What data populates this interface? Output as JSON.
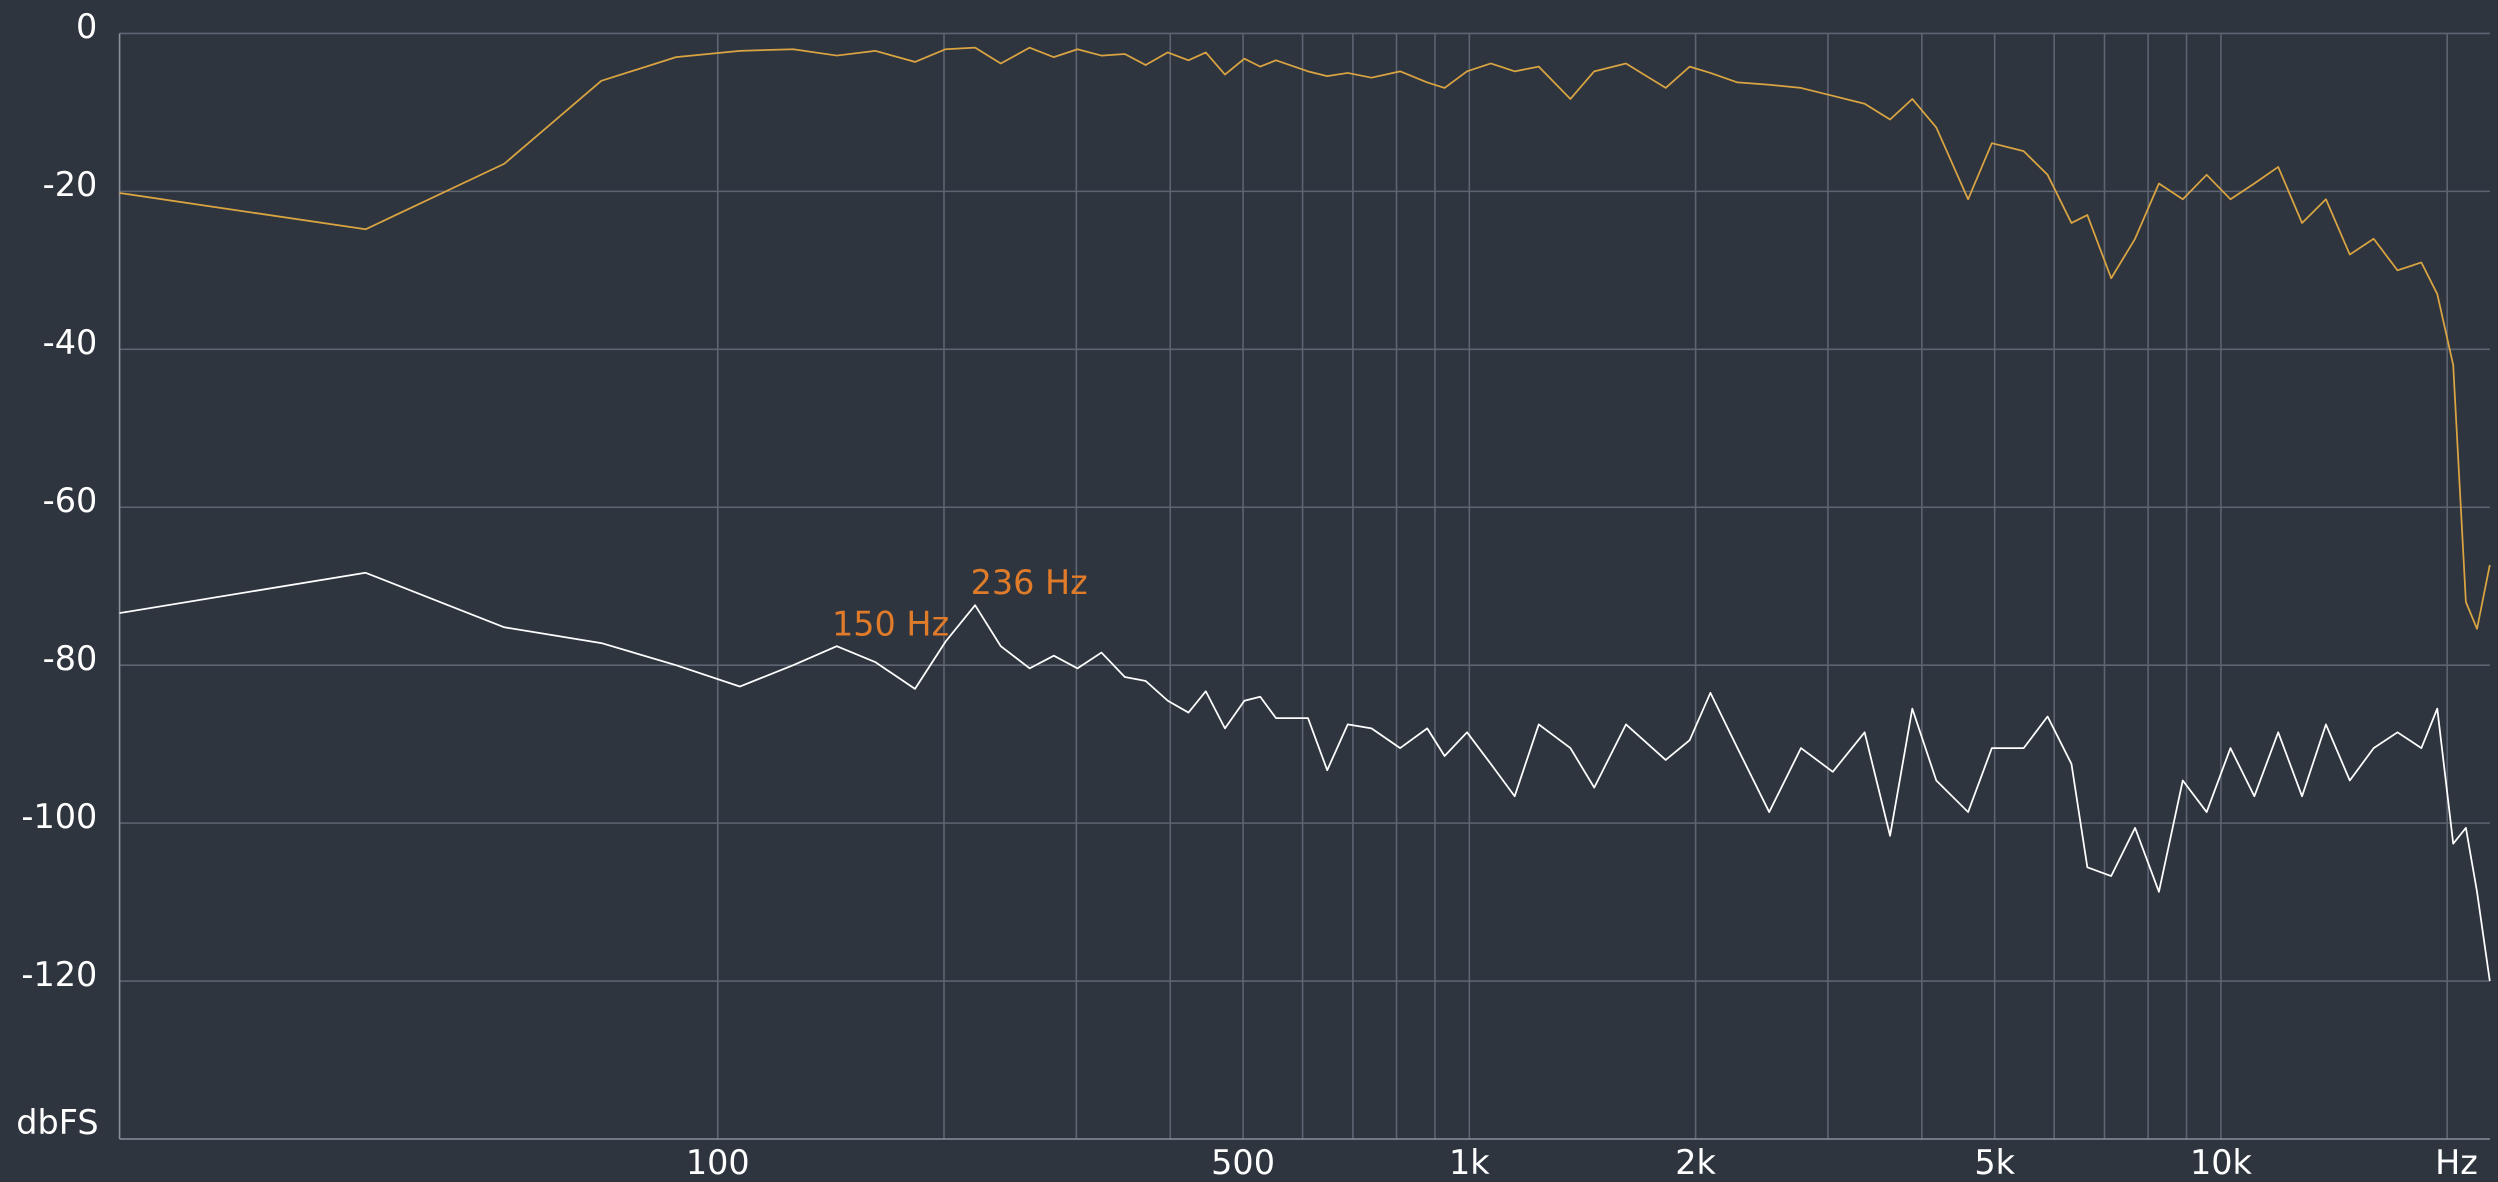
{
  "chart_data": {
    "type": "line",
    "y_label": "dbFS",
    "x_label": "Hz",
    "log_x": true,
    "grid": true,
    "xlim": [
      16,
      22800
    ],
    "ylim": [
      -140,
      0
    ],
    "yticks": [
      0,
      -20,
      -40,
      -60,
      -80,
      -100,
      -120
    ],
    "xticks": [
      100,
      500,
      {
        "value": 1000,
        "label": "1k"
      },
      {
        "value": 2000,
        "label": "2k"
      },
      {
        "value": 5000,
        "label": "5k"
      },
      {
        "value": 10000,
        "label": "10k"
      }
    ],
    "xgrid": [
      200,
      300,
      400,
      600,
      700,
      800,
      900,
      3000,
      4000,
      6000,
      7000,
      8000,
      9000,
      20000
    ],
    "x": [
      16,
      34,
      52,
      70,
      88,
      107,
      126,
      144,
      162,
      183,
      201,
      220,
      238,
      260,
      280,
      301,
      324,
      348,
      371,
      397,
      423,
      446,
      473,
      502,
      527,
      553,
      610,
      647,
      689,
      741,
      809,
      879,
      927,
      993,
      1068,
      1149,
      1237,
      1363,
      1466,
      1616,
      1825,
      1964,
      2093,
      2274,
      2506,
      2762,
      3045,
      3357,
      3629,
      3885,
      4181,
      4609,
      4957,
      5465,
      5880,
      6326,
      6642,
      7145,
      7687,
      8270,
      8897,
      9572,
      10297,
      11078,
      11919,
      12822,
      13795,
      14841,
      15967,
      17177,
      18480,
      19403,
      20373,
      21180,
      21915,
      22790
    ],
    "series": [
      {
        "color": "#d9a441",
        "values": [
          -20.2,
          -24.8,
          -16.5,
          -6,
          -3,
          -2.2,
          -2,
          -2.8,
          -2.2,
          -3.6,
          -2,
          -1.8,
          -3.8,
          -1.8,
          -3,
          -2,
          -2.8,
          -2.6,
          -4,
          -2.4,
          -3.4,
          -2.4,
          -5.2,
          -3.2,
          -4.2,
          -3.4,
          -4.8,
          -5.4,
          -5,
          -5.6,
          -4.8,
          -6.2,
          -6.9,
          -4.8,
          -3.8,
          -4.8,
          -4.2,
          -8.3,
          -4.8,
          -3.8,
          -6.9,
          -4.2,
          -5,
          -6.2,
          -6.5,
          -6.9,
          -7.9,
          -8.9,
          -10.9,
          -8.3,
          -11.9,
          -21,
          -13.9,
          -14.9,
          -17.9,
          -24,
          -23,
          -31,
          -26,
          -19,
          -21,
          -17.9,
          -21,
          -19,
          -16.9,
          -24,
          -21,
          -28,
          -26,
          -30,
          -29,
          -33,
          -42,
          -72,
          -75.4,
          -67.3
        ]
      },
      {
        "color": "#ffffff",
        "values": [
          -73.4,
          -68.3,
          -75.2,
          -77.2,
          -80,
          -82.7,
          -80,
          -77.6,
          -79.6,
          -83,
          -77,
          -72.4,
          -77.6,
          -80.4,
          -78.8,
          -80.4,
          -78.4,
          -81.5,
          -82,
          -84.5,
          -86,
          -83.3,
          -88,
          -84.5,
          -84,
          -86.7,
          -86.7,
          -93.3,
          -87.5,
          -88,
          -90.5,
          -88,
          -91.5,
          -88.5,
          -92.5,
          -96.6,
          -87.5,
          -90.5,
          -95.5,
          -87.5,
          -92,
          -89.5,
          -83.5,
          -90.5,
          -98.6,
          -90.5,
          -93.5,
          -88.5,
          -101.6,
          -85.5,
          -94.6,
          -98.6,
          -90.5,
          -90.5,
          -86.5,
          -92.5,
          -105.6,
          -106.7,
          -100.6,
          -108.7,
          -94.6,
          -98.6,
          -90.5,
          -96.6,
          -88.5,
          -96.6,
          -87.5,
          -94.6,
          -90.5,
          -88.5,
          -90.5,
          -85.5,
          -102.6,
          -100.6,
          -108.7,
          -120
        ]
      }
    ],
    "annotations": [
      {
        "text": "150 Hz",
        "color": "#e07b2a"
      },
      {
        "text": "236 Hz",
        "color": "#e07b2a"
      }
    ]
  }
}
